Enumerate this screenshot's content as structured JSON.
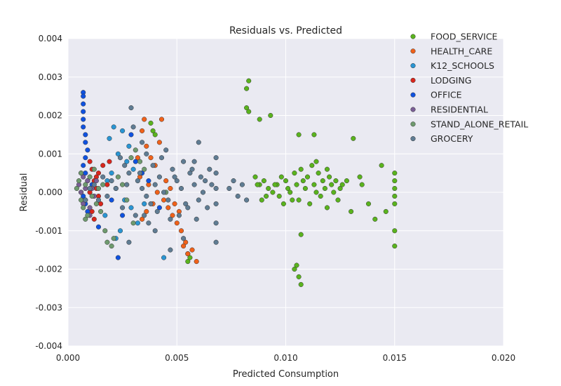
{
  "chart_data": {
    "type": "scatter",
    "title": "Residuals vs. Predicted",
    "xlabel": "Predicted Consumption",
    "ylabel": "Residual",
    "xlim": [
      0.0,
      0.02
    ],
    "ylim": [
      -0.004,
      0.004
    ],
    "xticks": [
      "0.000",
      "0.005",
      "0.010",
      "0.015",
      "0.020"
    ],
    "xtick_values": [
      0.0,
      0.005,
      0.01,
      0.015,
      0.02
    ],
    "yticks": [
      "0.004",
      "0.003",
      "0.002",
      "0.001",
      "0.000",
      "-0.001",
      "-0.002",
      "-0.003",
      "-0.004"
    ],
    "ytick_values": [
      0.004,
      0.003,
      0.002,
      0.001,
      0.0,
      -0.001,
      -0.002,
      -0.003,
      -0.004
    ],
    "grid": true,
    "legend_position": "top-right",
    "background_color": "#EAEAF2",
    "series": [
      {
        "name": "FOOD_SERVICE",
        "color": "#5AB31E",
        "points": [
          [
            0.0083,
            0.0029
          ],
          [
            0.0082,
            0.0027
          ],
          [
            0.0082,
            0.0022
          ],
          [
            0.0083,
            0.0021
          ],
          [
            0.0088,
            0.0019
          ],
          [
            0.0093,
            0.002
          ],
          [
            0.0106,
            0.0015
          ],
          [
            0.0113,
            0.0015
          ],
          [
            0.0131,
            0.0014
          ],
          [
            0.0086,
            0.0004
          ],
          [
            0.0088,
            0.0002
          ],
          [
            0.009,
            0.0003
          ],
          [
            0.0092,
            0.0001
          ],
          [
            0.0094,
            0.0
          ],
          [
            0.0096,
            0.0002
          ],
          [
            0.0098,
            0.0004
          ],
          [
            0.01,
            0.0003
          ],
          [
            0.0101,
            0.0001
          ],
          [
            0.0102,
            0.0
          ],
          [
            0.0104,
            0.0005
          ],
          [
            0.0105,
            0.0002
          ],
          [
            0.0106,
            -0.0002
          ],
          [
            0.0107,
            0.0006
          ],
          [
            0.0108,
            0.0003
          ],
          [
            0.0109,
            0.0001
          ],
          [
            0.011,
            0.0004
          ],
          [
            0.0111,
            -0.0003
          ],
          [
            0.0112,
            0.0007
          ],
          [
            0.0113,
            0.0002
          ],
          [
            0.0114,
            0.0
          ],
          [
            0.0115,
            0.0005
          ],
          [
            0.0116,
            -0.0001
          ],
          [
            0.0117,
            0.0003
          ],
          [
            0.0118,
            0.0001
          ],
          [
            0.0119,
            -0.0004
          ],
          [
            0.012,
            0.0004
          ],
          [
            0.0121,
            0.0002
          ],
          [
            0.0122,
            0.0
          ],
          [
            0.0123,
            0.0003
          ],
          [
            0.0124,
            -0.0002
          ],
          [
            0.0125,
            0.0001
          ],
          [
            0.0126,
            0.0002
          ],
          [
            0.0128,
            0.0003
          ],
          [
            0.013,
            -0.0005
          ],
          [
            0.0134,
            0.0004
          ],
          [
            0.0135,
            0.0002
          ],
          [
            0.0138,
            -0.0003
          ],
          [
            0.0141,
            -0.0007
          ],
          [
            0.0144,
            0.0007
          ],
          [
            0.0146,
            -0.0005
          ],
          [
            0.015,
            0.0005
          ],
          [
            0.015,
            0.0003
          ],
          [
            0.015,
            0.0001
          ],
          [
            0.015,
            -0.0001
          ],
          [
            0.015,
            -0.0003
          ],
          [
            0.015,
            -0.001
          ],
          [
            0.015,
            -0.0014
          ],
          [
            0.0107,
            -0.0011
          ],
          [
            0.0105,
            -0.0019
          ],
          [
            0.0104,
            -0.002
          ],
          [
            0.0106,
            -0.0022
          ],
          [
            0.0107,
            -0.0024
          ],
          [
            0.0097,
            -0.0001
          ],
          [
            0.0099,
            -0.0003
          ],
          [
            0.0103,
            -0.0002
          ],
          [
            0.0089,
            -0.0002
          ],
          [
            0.0095,
            0.0002
          ],
          [
            0.0038,
            0.0018
          ],
          [
            0.0039,
            0.0016
          ],
          [
            0.004,
            0.0015
          ],
          [
            0.0055,
            -0.0016
          ],
          [
            0.0056,
            -0.0017
          ],
          [
            0.0055,
            -0.0018
          ],
          [
            0.0087,
            0.0002
          ],
          [
            0.0091,
            -0.0001
          ],
          [
            0.0114,
            0.0008
          ],
          [
            0.0119,
            0.0006
          ]
        ]
      },
      {
        "name": "HEALTH_CARE",
        "color": "#F0611A",
        "points": [
          [
            0.0035,
            0.0019
          ],
          [
            0.0043,
            0.0019
          ],
          [
            0.0034,
            0.0016
          ],
          [
            0.0036,
            0.0012
          ],
          [
            0.0038,
            0.0009
          ],
          [
            0.004,
            0.0007
          ],
          [
            0.0033,
            0.0004
          ],
          [
            0.0037,
            0.0002
          ],
          [
            0.0041,
            0.0
          ],
          [
            0.0044,
            -0.0002
          ],
          [
            0.0046,
            -0.0004
          ],
          [
            0.0048,
            -0.0006
          ],
          [
            0.005,
            -0.0008
          ],
          [
            0.0052,
            -0.001
          ],
          [
            0.0054,
            -0.0013
          ],
          [
            0.0057,
            -0.0015
          ],
          [
            0.0059,
            -0.0018
          ],
          [
            0.0053,
            -0.0014
          ],
          [
            0.0039,
            -0.0003
          ],
          [
            0.0036,
            -0.0005
          ],
          [
            0.0034,
            -0.0007
          ],
          [
            0.0045,
            0.0003
          ],
          [
            0.0047,
            0.0001
          ],
          [
            0.0049,
            -0.0003
          ],
          [
            0.0051,
            -0.0005
          ],
          [
            0.0055,
            -0.0016
          ],
          [
            0.0032,
            0.0009
          ],
          [
            0.0042,
            0.0013
          ]
        ]
      },
      {
        "name": "K12_SCHOOLS",
        "color": "#2A95D3",
        "points": [
          [
            0.0021,
            0.0017
          ],
          [
            0.0025,
            0.0016
          ],
          [
            0.0019,
            0.0014
          ],
          [
            0.0023,
            0.001
          ],
          [
            0.0027,
            0.0008
          ],
          [
            0.003,
            0.0006
          ],
          [
            0.0018,
            0.0003
          ],
          [
            0.0022,
            0.0001
          ],
          [
            0.0026,
            -0.0002
          ],
          [
            0.0029,
            -0.0004
          ],
          [
            0.0024,
            -0.001
          ],
          [
            0.0022,
            -0.0012
          ],
          [
            0.0044,
            -0.0017
          ],
          [
            0.0032,
            -0.0008
          ],
          [
            0.0035,
            -0.0003
          ],
          [
            0.002,
            0.0005
          ],
          [
            0.0028,
            0.0012
          ],
          [
            0.0017,
            -0.0006
          ]
        ]
      },
      {
        "name": "LODGING",
        "color": "#D9261C",
        "points": [
          [
            0.001,
            0.0008
          ],
          [
            0.0011,
            0.0006
          ],
          [
            0.0012,
            0.0003
          ],
          [
            0.0013,
            0.0001
          ],
          [
            0.0014,
            -0.0001
          ],
          [
            0.0015,
            -0.0003
          ],
          [
            0.0011,
            -0.0005
          ],
          [
            0.0012,
            -0.0007
          ],
          [
            0.0013,
            0.0004
          ],
          [
            0.001,
            0.0
          ],
          [
            0.0016,
            0.0007
          ],
          [
            0.0019,
            0.0008
          ],
          [
            0.0018,
            0.0002
          ],
          [
            0.0014,
            0.0005
          ]
        ]
      },
      {
        "name": "OFFICE",
        "color": "#0F52E0",
        "points": [
          [
            0.0007,
            0.0026
          ],
          [
            0.0007,
            0.0025
          ],
          [
            0.0007,
            0.0023
          ],
          [
            0.0007,
            0.0021
          ],
          [
            0.0007,
            0.0019
          ],
          [
            0.0007,
            0.0017
          ],
          [
            0.0008,
            0.0015
          ],
          [
            0.0008,
            0.0013
          ],
          [
            0.0009,
            0.0011
          ],
          [
            0.0008,
            0.0009
          ],
          [
            0.0007,
            0.0007
          ],
          [
            0.0008,
            0.0005
          ],
          [
            0.0009,
            0.0003
          ],
          [
            0.001,
            0.0001
          ],
          [
            0.0007,
            -0.0001
          ],
          [
            0.0008,
            -0.0003
          ],
          [
            0.0009,
            -0.0005
          ],
          [
            0.0014,
            -0.0009
          ],
          [
            0.0023,
            -0.0017
          ],
          [
            0.0025,
            -0.0006
          ],
          [
            0.0031,
            0.0008
          ],
          [
            0.0034,
            0.0005
          ],
          [
            0.0037,
            0.0003
          ],
          [
            0.0042,
            -0.0004
          ],
          [
            0.0029,
            0.0015
          ],
          [
            0.002,
            -0.0002
          ],
          [
            0.0011,
            0.0002
          ],
          [
            0.0006,
            0.0
          ]
        ]
      },
      {
        "name": "RESIDENTIAL",
        "color": "#7A5E96",
        "points": [
          [
            0.0005,
            0.0002
          ],
          [
            0.0006,
            0.0
          ],
          [
            0.0007,
            0.0004
          ],
          [
            0.0008,
            -0.0002
          ],
          [
            0.0009,
            0.0003
          ],
          [
            0.001,
            -0.0004
          ],
          [
            0.0011,
            0.0001
          ],
          [
            0.0006,
            0.0005
          ],
          [
            0.0012,
            -0.0001
          ],
          [
            0.0013,
            0.0003
          ],
          [
            0.0008,
            0.0001
          ],
          [
            0.001,
            -0.0006
          ],
          [
            0.0007,
            -0.0003
          ]
        ]
      },
      {
        "name": "STAND_ALONE_RETAIL",
        "color": "#6E9A6E",
        "points": [
          [
            0.0004,
            0.0001
          ],
          [
            0.0005,
            0.0003
          ],
          [
            0.0006,
            -0.0002
          ],
          [
            0.0007,
            -0.0004
          ],
          [
            0.0008,
            0.0002
          ],
          [
            0.0009,
            -0.0006
          ],
          [
            0.001,
            0.0004
          ],
          [
            0.0011,
            -0.0001
          ],
          [
            0.0012,
            0.0006
          ],
          [
            0.0013,
            -0.0003
          ],
          [
            0.0014,
            0.0001
          ],
          [
            0.0015,
            -0.0005
          ],
          [
            0.0016,
            0.0002
          ],
          [
            0.0017,
            -0.001
          ],
          [
            0.0018,
            -0.0013
          ],
          [
            0.002,
            -0.0014
          ],
          [
            0.0021,
            -0.0012
          ],
          [
            0.0023,
            0.0004
          ],
          [
            0.0025,
            0.0002
          ],
          [
            0.0027,
            -0.0002
          ],
          [
            0.0029,
            0.0009
          ],
          [
            0.0031,
            0.0011
          ],
          [
            0.0033,
            0.0008
          ],
          [
            0.0035,
            0.0006
          ],
          [
            0.0008,
            -0.0007
          ],
          [
            0.0006,
            0.0005
          ],
          [
            0.003,
            -0.0008
          ],
          [
            0.0045,
            0.0
          ]
        ]
      },
      {
        "name": "GROCERY",
        "color": "#5F7C93",
        "points": [
          [
            0.0029,
            0.0022
          ],
          [
            0.003,
            0.0017
          ],
          [
            0.0034,
            0.0013
          ],
          [
            0.0036,
            0.001
          ],
          [
            0.0024,
            0.0009
          ],
          [
            0.0026,
            0.0007
          ],
          [
            0.0028,
            0.0005
          ],
          [
            0.0032,
            0.0003
          ],
          [
            0.0034,
            0.0001
          ],
          [
            0.0036,
            -0.0001
          ],
          [
            0.0038,
            -0.0003
          ],
          [
            0.004,
            0.0002
          ],
          [
            0.0042,
            0.0004
          ],
          [
            0.0044,
            0.0
          ],
          [
            0.0046,
            -0.0002
          ],
          [
            0.0048,
            0.0006
          ],
          [
            0.005,
            0.0003
          ],
          [
            0.0052,
            0.0001
          ],
          [
            0.0054,
            -0.0003
          ],
          [
            0.0056,
            0.0005
          ],
          [
            0.0058,
            0.0002
          ],
          [
            0.006,
            0.0013
          ],
          [
            0.006,
            -0.0002
          ],
          [
            0.0062,
            0.0
          ],
          [
            0.0064,
            -0.0004
          ],
          [
            0.0066,
            0.0002
          ],
          [
            0.0068,
            0.0009
          ],
          [
            0.0068,
            0.0005
          ],
          [
            0.0068,
            0.0001
          ],
          [
            0.0068,
            -0.0003
          ],
          [
            0.0068,
            -0.0008
          ],
          [
            0.0068,
            -0.0013
          ],
          [
            0.0074,
            0.0001
          ],
          [
            0.0076,
            0.0003
          ],
          [
            0.0078,
            -0.0001
          ],
          [
            0.008,
            0.0002
          ],
          [
            0.0082,
            -0.0002
          ],
          [
            0.002,
            0.0003
          ],
          [
            0.0022,
            0.0001
          ],
          [
            0.0018,
            -0.0001
          ],
          [
            0.0016,
            0.0004
          ],
          [
            0.0014,
            -0.0002
          ],
          [
            0.0012,
            0.0002
          ],
          [
            0.001,
            0.0001
          ],
          [
            0.0008,
            -0.0002
          ],
          [
            0.0025,
            -0.0004
          ],
          [
            0.0027,
            0.0002
          ],
          [
            0.0031,
            -0.0006
          ],
          [
            0.0033,
            0.0005
          ],
          [
            0.0037,
            -0.0008
          ],
          [
            0.0039,
            0.0007
          ],
          [
            0.0041,
            -0.0005
          ],
          [
            0.0043,
            0.0009
          ],
          [
            0.0047,
            -0.0007
          ],
          [
            0.0049,
            0.0004
          ],
          [
            0.0051,
            -0.0006
          ],
          [
            0.0053,
            0.0008
          ],
          [
            0.0055,
            -0.0004
          ],
          [
            0.0057,
            0.0006
          ],
          [
            0.0059,
            -0.0007
          ],
          [
            0.0061,
            0.0004
          ],
          [
            0.0063,
            0.0003
          ],
          [
            0.0065,
            0.0006
          ],
          [
            0.0053,
            -0.0012
          ],
          [
            0.004,
            -0.001
          ],
          [
            0.0035,
            -0.0006
          ],
          [
            0.0047,
            -0.0015
          ],
          [
            0.0028,
            -0.0013
          ],
          [
            0.0045,
            0.0011
          ],
          [
            0.0058,
            0.0008
          ]
        ]
      }
    ]
  }
}
